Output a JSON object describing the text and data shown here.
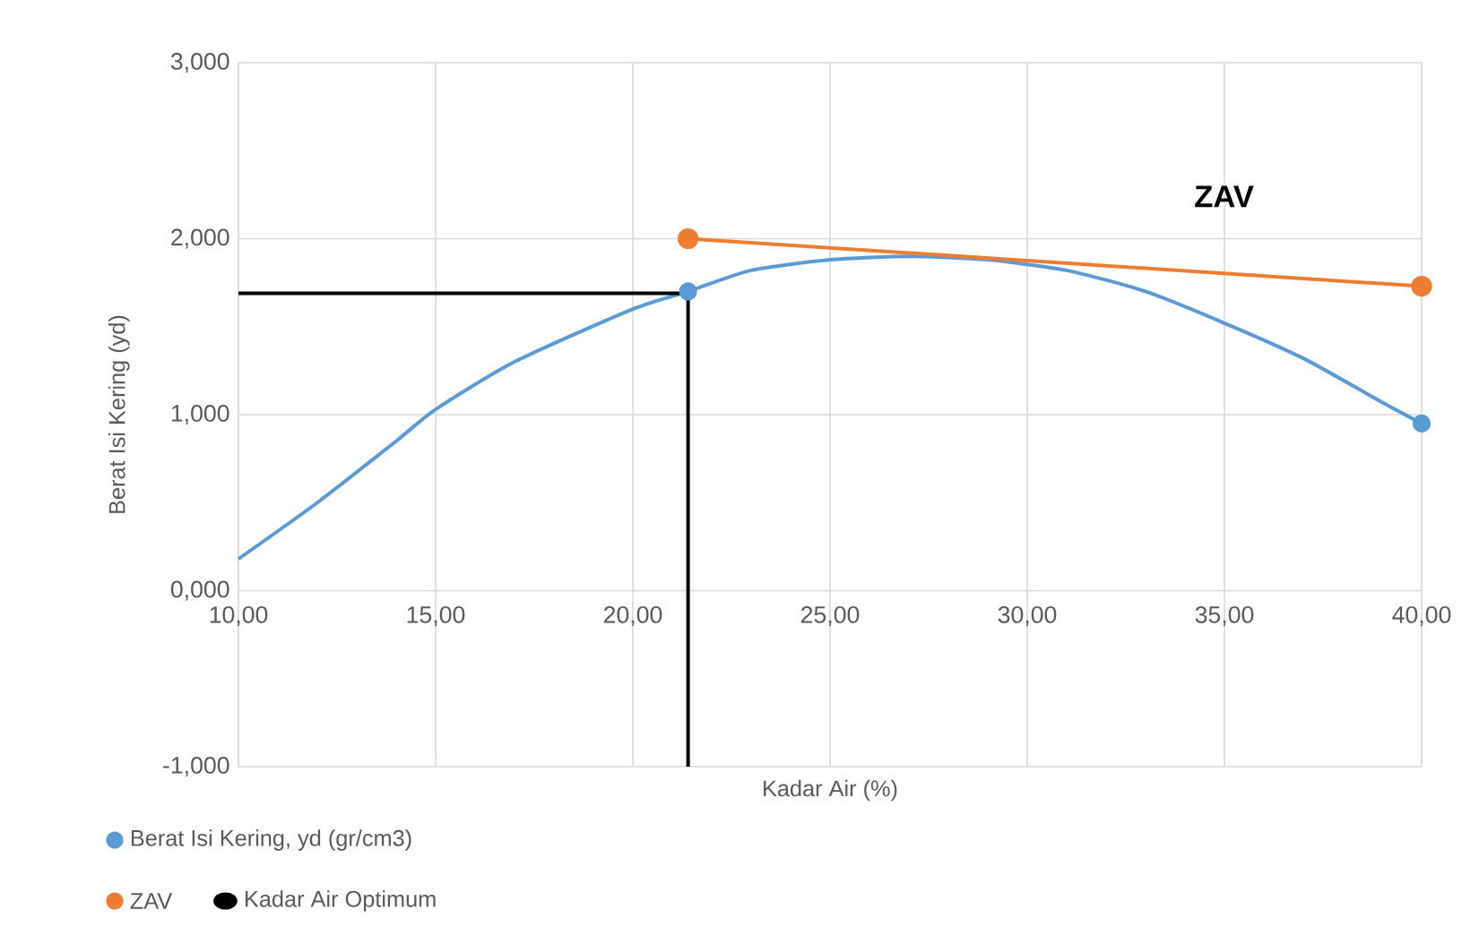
{
  "chart_data": {
    "type": "line",
    "xlabel": "Kadar Air (%)",
    "ylabel": "Berat Isi Kering (yd)",
    "xlim": [
      10,
      40
    ],
    "ylim": [
      -1,
      3
    ],
    "xticks": [
      {
        "value": 10,
        "label": "10,00"
      },
      {
        "value": 15,
        "label": "15,00"
      },
      {
        "value": 20,
        "label": "20,00"
      },
      {
        "value": 25,
        "label": "25,00"
      },
      {
        "value": 30,
        "label": "30,00"
      },
      {
        "value": 35,
        "label": "35,00"
      },
      {
        "value": 40,
        "label": "40,00"
      }
    ],
    "yticks": [
      {
        "value": -1,
        "label": "-1,000"
      },
      {
        "value": 0,
        "label": "0,000"
      },
      {
        "value": 1,
        "label": "1,000"
      },
      {
        "value": 2,
        "label": "2,000"
      },
      {
        "value": 3,
        "label": "3,000"
      }
    ],
    "grid": true,
    "legend": "bottom",
    "series": [
      {
        "name": "Berat Isi Kering, yd (gr/cm3)",
        "type": "scatter",
        "marker": "circle",
        "color": "#5b9bd5",
        "x": [
          21.4,
          40
        ],
        "values": [
          1.7,
          0.95
        ]
      },
      {
        "type": "line",
        "marker": "none",
        "color": "#5b9bd5",
        "x": [
          10,
          12,
          14,
          15,
          17,
          20,
          21.4,
          23,
          25,
          27,
          29,
          31,
          33,
          35,
          37,
          39,
          40
        ],
        "values": [
          0.18,
          0.5,
          0.85,
          1.03,
          1.3,
          1.6,
          1.7,
          1.82,
          1.88,
          1.9,
          1.88,
          1.82,
          1.7,
          1.52,
          1.32,
          1.07,
          0.95
        ]
      },
      {
        "name": "ZAV",
        "type": "line",
        "marker": "circle",
        "color": "#ed7d31",
        "x": [
          21.4,
          40
        ],
        "values": [
          2.0,
          1.73
        ]
      },
      {
        "name": "Kadar Air Optimum",
        "type": "line",
        "marker": "none",
        "color": "#000000",
        "x": [
          10,
          21.4,
          21.4
        ],
        "values": [
          1.69,
          1.69,
          -1.0
        ]
      }
    ],
    "annotations": [
      "ZAV"
    ]
  }
}
